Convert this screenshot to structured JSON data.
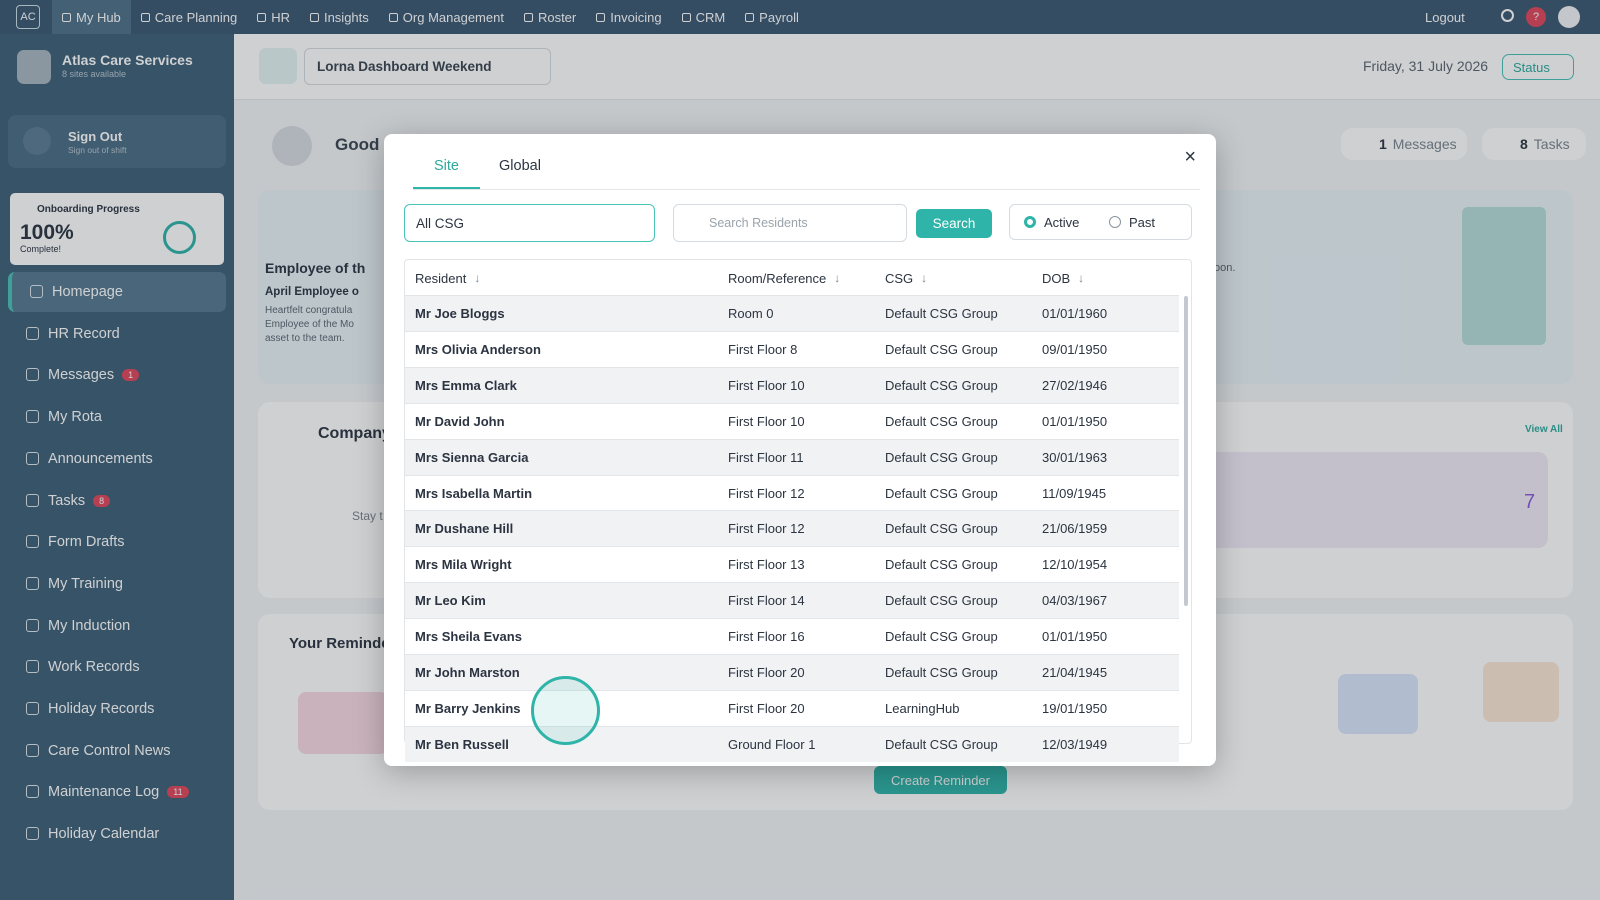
{
  "topnav": {
    "logo": "AC",
    "items": [
      "My Hub",
      "Care Planning",
      "HR",
      "Insights",
      "Org Management",
      "Roster",
      "Invoicing",
      "CRM",
      "Payroll"
    ],
    "logout": "Logout",
    "help": "?"
  },
  "sidebar": {
    "org_name": "Atlas Care Services",
    "org_sub": "8 sites available",
    "signout_title": "Sign Out",
    "signout_sub": "Sign out of shift",
    "onboarding_title": "Onboarding Progress",
    "onboarding_percent": "100%",
    "onboarding_status": "Complete!",
    "menu": [
      {
        "label": "Homepage"
      },
      {
        "label": "HR Record"
      },
      {
        "label": "Messages",
        "badge": 1
      },
      {
        "label": "My Rota"
      },
      {
        "label": "Announcements"
      },
      {
        "label": "Tasks",
        "badge": 8
      },
      {
        "label": "Form Drafts"
      },
      {
        "label": "My Training"
      },
      {
        "label": "My Induction"
      },
      {
        "label": "Work Records"
      },
      {
        "label": "Holiday Records"
      },
      {
        "label": "Care Control News"
      },
      {
        "label": "Maintenance Log",
        "badge": 11
      },
      {
        "label": "Holiday Calendar"
      }
    ]
  },
  "header": {
    "site": "Lorna Dashboard Weekend",
    "date": "Friday, 31 July 2026",
    "status": "Status"
  },
  "background": {
    "greeting": "Good a",
    "messages_count": 1,
    "messages_label": "Messages",
    "tasks_count": 8,
    "tasks_label": "Tasks",
    "employee_title": "Employee of th",
    "employee_sub": "April Employee o",
    "employee_text": [
      "Heartfelt congratula",
      "Employee of the Mo",
      "asset to the team."
    ],
    "right_fragment": "oon.",
    "company": "Company",
    "stay": "Stay t",
    "view_all": "View All",
    "announcement_count": 7,
    "reminders": "Your Reminde",
    "create_reminder": "Create Reminder"
  },
  "modal": {
    "tabs": [
      "Site",
      "Global"
    ],
    "csg_select": "All CSG",
    "search_placeholder": "Search Residents",
    "search_button": "Search",
    "radios": [
      "Active",
      "Past"
    ],
    "table": {
      "columns": [
        "Resident",
        "Room/Reference",
        "CSG",
        "DOB"
      ],
      "rows": [
        [
          "Mr Joe Bloggs",
          "Room 0",
          "Default CSG Group",
          "01/01/1960"
        ],
        [
          "Mrs Olivia Anderson",
          "First Floor 8",
          "Default CSG Group",
          "09/01/1950"
        ],
        [
          "Mrs Emma Clark",
          "First Floor 10",
          "Default CSG Group",
          "27/02/1946"
        ],
        [
          "Mr David John",
          "First Floor 10",
          "Default CSG Group",
          "01/01/1950"
        ],
        [
          "Mrs Sienna Garcia",
          "First Floor 11",
          "Default CSG Group",
          "30/01/1963"
        ],
        [
          "Mrs Isabella Martin",
          "First Floor 12",
          "Default CSG Group",
          "11/09/1945"
        ],
        [
          "Mr Dushane Hill",
          "First Floor 12",
          "Default CSG Group",
          "21/06/1959"
        ],
        [
          "Mrs Mila Wright",
          "First Floor 13",
          "Default CSG Group",
          "12/10/1954"
        ],
        [
          "Mr Leo Kim",
          "First Floor 14",
          "Default CSG Group",
          "04/03/1967"
        ],
        [
          "Mrs Sheila Evans",
          "First Floor 16",
          "Default CSG Group",
          "01/01/1950"
        ],
        [
          "Mr John Marston",
          "First Floor 20",
          "Default CSG Group",
          "21/04/1945"
        ],
        [
          "Mr Barry Jenkins",
          "First Floor 20",
          "LearningHub",
          "19/01/1950"
        ],
        [
          "Mr Ben Russell",
          "Ground Floor 1",
          "Default CSG Group",
          "12/03/1949"
        ]
      ]
    }
  }
}
